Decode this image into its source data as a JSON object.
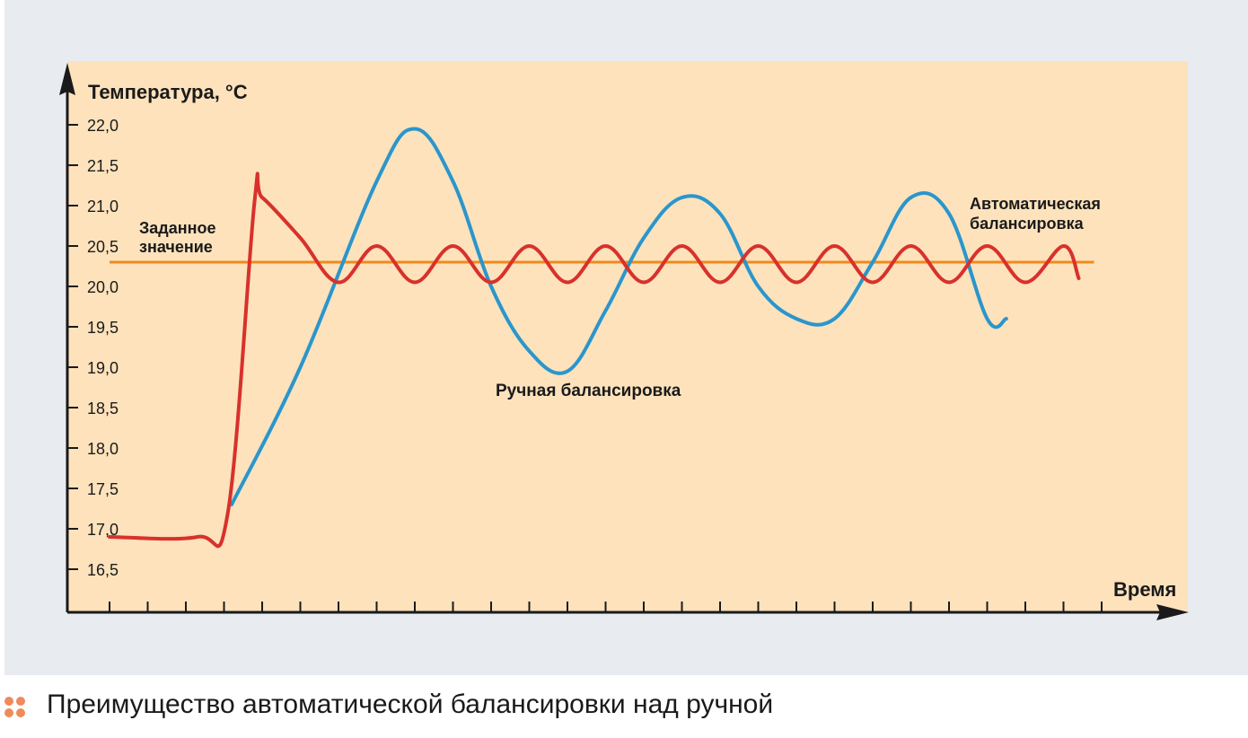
{
  "caption": "Преимущество автоматической балансировки над ручной",
  "colors": {
    "background": "#e8ecf1",
    "plot_bg": "#fde2bc",
    "manual": "#2a96cc",
    "auto": "#d8312b",
    "setpoint": "#f08a1c",
    "caption_dots": "#f08a5a"
  },
  "chart_data": {
    "type": "line",
    "title": "",
    "ylabel": "Температура, °С",
    "xlabel": "Время",
    "ylim": [
      16.0,
      22.5
    ],
    "xlim": [
      0,
      28
    ],
    "yticks": [
      "16,5",
      "17,0",
      "17,5",
      "18,0",
      "18,5",
      "19,0",
      "19,5",
      "20,0",
      "20,5",
      "21,0",
      "21,5",
      "22,0"
    ],
    "ytick_values": [
      16.5,
      17.0,
      17.5,
      18.0,
      18.5,
      19.0,
      19.5,
      20.0,
      20.5,
      21.0,
      21.5,
      22.0
    ],
    "xtick_count": 27,
    "setpoint": {
      "value": 20.3,
      "label": "Заданное значение",
      "label_lines": [
        "Заданное",
        "значение"
      ]
    },
    "series": [
      {
        "name": "Ручная балансировка",
        "label_lines": [
          "Ручная балансировка"
        ],
        "color": "#2a96cc",
        "x": [
          3.2,
          5.0,
          7.0,
          8.0,
          9.0,
          10.0,
          11.0,
          12.0,
          13.0,
          14.0,
          15.0,
          16.0,
          17.0,
          18.0,
          19.0,
          20.0,
          21.0,
          22.0,
          23.0,
          23.5
        ],
        "y": [
          17.3,
          19.0,
          21.3,
          21.95,
          21.3,
          20.0,
          19.2,
          18.95,
          19.7,
          20.6,
          21.1,
          20.9,
          20.0,
          19.6,
          19.6,
          20.3,
          21.1,
          20.9,
          19.6,
          19.6
        ]
      },
      {
        "name": "Автоматическая балансировка",
        "label_lines": [
          "Автоматическая",
          "балансировка"
        ],
        "color": "#d8312b",
        "x": [
          0,
          2.3,
          3.1,
          3.8,
          4.0,
          5.0,
          6.0,
          7.0,
          8.0,
          9.0,
          10.0,
          11.0,
          12.0,
          13.0,
          14.0,
          15.0,
          16.0,
          17.0,
          18.0,
          19.0,
          20.0,
          21.0,
          22.0,
          23.0,
          24.0,
          25.0,
          25.4
        ],
        "y": [
          16.9,
          16.9,
          17.2,
          21.05,
          21.1,
          20.6,
          20.05,
          20.5,
          20.05,
          20.5,
          20.05,
          20.5,
          20.05,
          20.5,
          20.05,
          20.5,
          20.05,
          20.5,
          20.05,
          20.5,
          20.05,
          20.5,
          20.05,
          20.5,
          20.05,
          20.5,
          20.1
        ]
      }
    ]
  }
}
